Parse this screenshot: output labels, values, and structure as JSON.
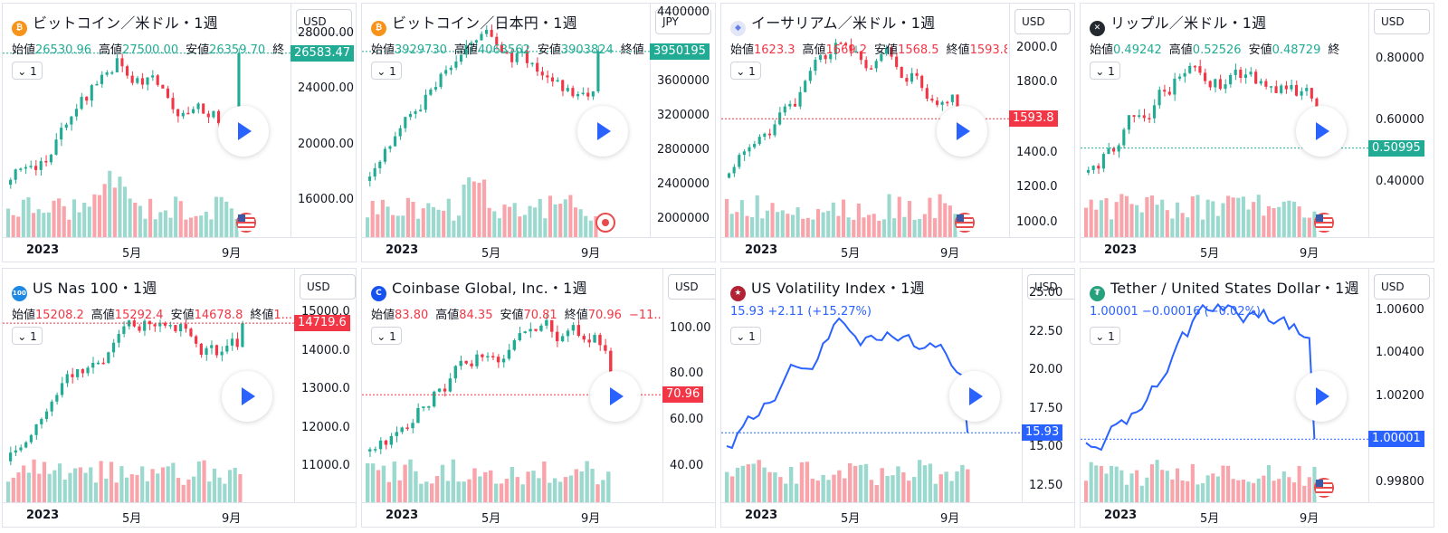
{
  "widgets": [
    {
      "title": "ビットコイン／米ドル・1週",
      "icon": {
        "name": "bitcoin-icon",
        "color": "#f7931a",
        "glyph": "₿"
      },
      "currency": "USD",
      "ohlc": [
        {
          "label": "始値",
          "value": "26530.96",
          "tone": "pos"
        },
        {
          "label": "高値",
          "value": "27500.00",
          "tone": "pos"
        },
        {
          "label": "安値",
          "value": "26359.70",
          "tone": "pos"
        },
        {
          "label": "終",
          "value": "",
          "tone": "pos"
        }
      ],
      "interval": "1",
      "yticks": [
        "28000.00",
        "24000.00",
        "20000.00",
        "16000.00"
      ],
      "price": "26583.47",
      "priceColor": "#22ab94",
      "xticks": [
        "2023",
        "5月",
        "9月"
      ],
      "chart_kind": "candle",
      "flag": "us-flag-icon",
      "ytop": 29500,
      "ybot": 14000,
      "lastval": 26583
    },
    {
      "title": "ビットコイン／日本円・1週",
      "icon": {
        "name": "bitcoin-icon",
        "color": "#f7931a",
        "glyph": "₿"
      },
      "currency": "JPY",
      "ohlc": [
        {
          "label": "始値",
          "value": "3929730",
          "tone": "pos"
        },
        {
          "label": "高値",
          "value": "4063562",
          "tone": "pos"
        },
        {
          "label": "安値",
          "value": "3903824",
          "tone": "pos"
        },
        {
          "label": "終値",
          "value": "",
          "tone": "pos"
        }
      ],
      "interval": "1",
      "yticks": [
        "4400000",
        "3600000",
        "3200000",
        "2800000",
        "2400000",
        "2000000"
      ],
      "price": "3950195",
      "priceColor": "#22ab94",
      "xticks": [
        "2023",
        "5月",
        "9月"
      ],
      "chart_kind": "candle",
      "flag": "jp-flag-icon",
      "ytop": 4400000,
      "ybot": 1900000,
      "lastval": 3950195
    },
    {
      "title": "イーサリアム／米ドル・1週",
      "icon": {
        "name": "ethereum-icon",
        "color": "#e3e6f7",
        "glyph": "◆"
      },
      "currency": "USD",
      "ohlc": [
        {
          "label": "始値",
          "value": "1623.3",
          "tone": "neg"
        },
        {
          "label": "高値",
          "value": "1669.2",
          "tone": "neg"
        },
        {
          "label": "安値",
          "value": "1568.5",
          "tone": "neg"
        },
        {
          "label": "終値",
          "value": "1593.8...",
          "tone": "neg"
        }
      ],
      "interval": "1",
      "yticks": [
        "2000.0",
        "1800.0",
        "1400.0",
        "1200.0",
        "1000.0"
      ],
      "price": "1593.8",
      "priceColor": "#f23645",
      "xticks": [
        "2023",
        "5月",
        "9月"
      ],
      "chart_kind": "candle",
      "flag": "us-flag-icon",
      "ytop": 2200,
      "ybot": 970,
      "lastval": 1593.8
    },
    {
      "title": "リップル／米ドル・1週",
      "icon": {
        "name": "ripple-icon",
        "color": "#23292f",
        "glyph": "✕"
      },
      "currency": "USD",
      "ohlc": [
        {
          "label": "始値",
          "value": "0.49242",
          "tone": "pos"
        },
        {
          "label": "高値",
          "value": "0.52526",
          "tone": "pos"
        },
        {
          "label": "安値",
          "value": "0.48729",
          "tone": "pos"
        },
        {
          "label": "終",
          "value": "",
          "tone": "pos"
        }
      ],
      "interval": "1",
      "yticks": [
        "0.80000",
        "0.60000",
        "0.40000"
      ],
      "price": "0.50995",
      "priceColor": "#22ab94",
      "xticks": [
        "2023",
        "5月",
        "9月"
      ],
      "chart_kind": "candle",
      "flag": "us-flag-icon",
      "ytop": 0.95,
      "ybot": 0.25,
      "lastval": 0.50995
    },
    {
      "title": "US Nas 100・1週",
      "icon": {
        "name": "nasdaq-icon",
        "color": "#1e88e5",
        "glyph": "100"
      },
      "currency": "USD",
      "ohlc": [
        {
          "label": "始値",
          "value": "15208.2",
          "tone": "neg"
        },
        {
          "label": "高値",
          "value": "15292.4",
          "tone": "neg"
        },
        {
          "label": "安値",
          "value": "14678.8",
          "tone": "neg"
        },
        {
          "label": "終値",
          "value": "1...",
          "tone": "neg"
        }
      ],
      "interval": "1",
      "yticks": [
        "15000.0",
        "14000.0",
        "13000.0",
        "12000.0",
        "11000.0"
      ],
      "price": "14719.6",
      "priceColor": "#f23645",
      "xticks": [
        "2023",
        "5月",
        "9月"
      ],
      "chart_kind": "candle",
      "flag": "",
      "ytop": 15900,
      "ybot": 10300,
      "lastval": 14719.6
    },
    {
      "title": "Coinbase Global, Inc.・1週",
      "icon": {
        "name": "coinbase-icon",
        "color": "#1652f0",
        "glyph": "C"
      },
      "currency": "USD",
      "ohlc": [
        {
          "label": "始値",
          "value": "83.80",
          "tone": "neg"
        },
        {
          "label": "高値",
          "value": "84.35",
          "tone": "neg"
        },
        {
          "label": "安値",
          "value": "70.81",
          "tone": "neg"
        },
        {
          "label": "終値",
          "value": "70.96",
          "tone": "neg"
        },
        {
          "label": "",
          "value": "−11...",
          "tone": "neg"
        }
      ],
      "interval": "1",
      "yticks": [
        "100.00",
        "80.00",
        "60.00",
        "40.00"
      ],
      "price": "70.96",
      "priceColor": "#f23645",
      "xticks": [
        "2023",
        "5月",
        "9月"
      ],
      "chart_kind": "candle",
      "flag": "",
      "ytop": 122,
      "ybot": 28,
      "lastval": 70.96
    },
    {
      "title": "US Volatility Index・1週",
      "icon": {
        "name": "us-flag-icon",
        "color": "#b22234",
        "glyph": "★"
      },
      "currency": "USD",
      "change": "15.93  +2.11 (+15.27%)",
      "interval": "1",
      "yticks": [
        "25.00",
        "22.50",
        "20.00",
        "17.50",
        "15.00",
        "12.50"
      ],
      "price": "15.93",
      "priceColor": "#2962ff",
      "xticks": [
        "2023",
        "5月",
        "9月"
      ],
      "chart_kind": "line",
      "flag": "",
      "ytop": 26.0,
      "ybot": 12.0,
      "lastval": 15.93
    },
    {
      "title": "Tether / United States Dollar・1週",
      "icon": {
        "name": "tether-icon",
        "color": "#26a17b",
        "glyph": "₮"
      },
      "currency": "USD",
      "change": "1.00001  −0.00016 (−0.02%)",
      "interval": "1",
      "yticks": [
        "1.00600",
        "1.00400",
        "1.00200",
        "1.00000",
        "0.99800"
      ],
      "price": "1.00001",
      "priceColor": "#2962ff",
      "xticks": [
        "2023",
        "5月",
        "9月"
      ],
      "chart_kind": "line",
      "flag": "us-flag-icon",
      "ytop": 1.0075,
      "ybot": 0.9975,
      "lastval": 1.00001
    }
  ]
}
